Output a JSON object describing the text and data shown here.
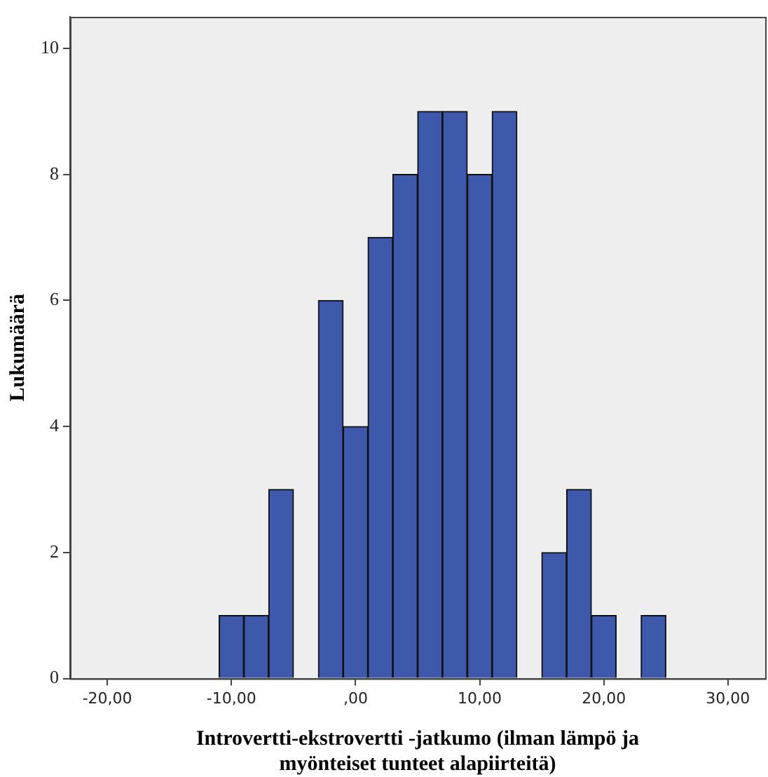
{
  "chart_data": {
    "type": "histogram",
    "xlabel": "Introvertti-ekstrovertti -jatkumo (ilman lämpö ja myönteiset tunteet alapiirteitä)",
    "ylabel": "Lukumäärä",
    "bins": [
      -11,
      -9,
      -7,
      -5,
      -3,
      -1,
      1,
      3,
      5,
      7,
      9,
      11,
      13,
      15,
      17,
      19,
      21,
      23,
      25
    ],
    "values": [
      1,
      1,
      3,
      0,
      6,
      4,
      7,
      8,
      9,
      9,
      8,
      9,
      0,
      2,
      3,
      1,
      0,
      1
    ],
    "color": "#3e58ac",
    "xlim": [
      -23,
      33
    ],
    "xticks": [
      {
        "value": -20,
        "label": "-20,00"
      },
      {
        "value": -10,
        "label": "-10,00"
      },
      {
        "value": 0,
        "label": ",00"
      },
      {
        "value": 10,
        "label": "10,00"
      },
      {
        "value": 20,
        "label": "20,00"
      },
      {
        "value": 30,
        "label": "30,00"
      }
    ],
    "ylim": [
      0,
      10.5
    ],
    "yticks": [
      0,
      2,
      4,
      6,
      8,
      10
    ],
    "grid": false
  }
}
